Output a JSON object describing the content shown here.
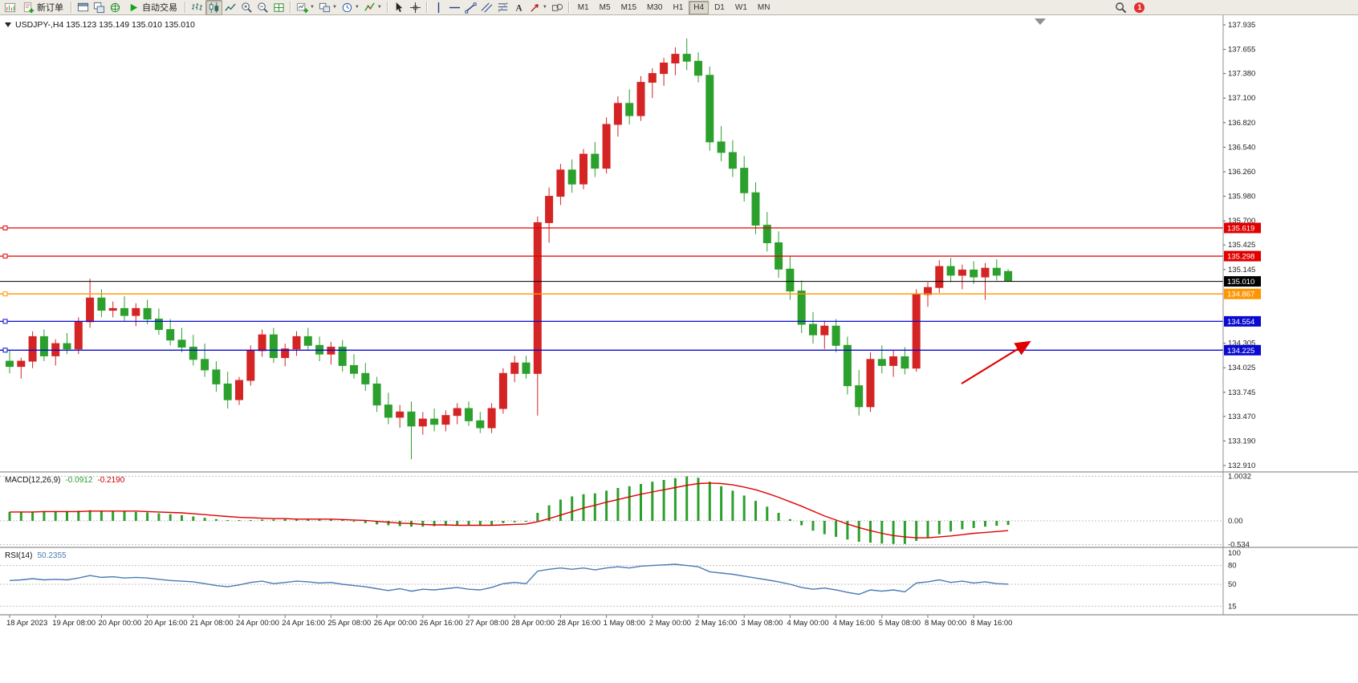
{
  "toolbar": {
    "new_order": "新订单",
    "auto_trading": "自动交易",
    "timeframes": [
      "M1",
      "M5",
      "M15",
      "M30",
      "H1",
      "H4",
      "D1",
      "W1",
      "MN"
    ],
    "active_timeframe": "H4",
    "notification_badge": "1",
    "items": [
      {
        "name": "chart-window-icon",
        "type": "icon",
        "icon": "chart-doc"
      },
      {
        "name": "new-order-button",
        "type": "button",
        "icon": "new-order",
        "label": "新订单"
      },
      {
        "name": "toolbar-separator",
        "type": "sep"
      },
      {
        "name": "profiles-button",
        "type": "icon",
        "icon": "window"
      },
      {
        "name": "market-watch-button",
        "type": "icon",
        "icon": "window2"
      },
      {
        "name": "navigator-button",
        "type": "icon",
        "icon": "globe"
      },
      {
        "name": "auto-trading-button",
        "type": "button",
        "icon": "play",
        "label": "自动交易"
      },
      {
        "name": "toolbar-separator",
        "type": "sep"
      },
      {
        "name": "bar-chart-button",
        "type": "icon",
        "icon": "bars"
      },
      {
        "name": "candlestick-chart-button",
        "type": "icon",
        "icon": "candles",
        "active": true
      },
      {
        "name": "line-chart-button",
        "type": "icon",
        "icon": "linechart"
      },
      {
        "name": "zoom-in-button",
        "type": "icon",
        "icon": "zoom-in"
      },
      {
        "name": "zoom-out-button",
        "type": "icon",
        "icon": "zoom-out"
      },
      {
        "name": "tile-windows-button",
        "type": "icon",
        "icon": "grid"
      },
      {
        "name": "toolbar-separator",
        "type": "sep"
      },
      {
        "name": "new-chart-button",
        "type": "icon",
        "icon": "chart-plus",
        "drop": true
      },
      {
        "name": "profiles-menu-button",
        "type": "icon",
        "icon": "layout",
        "drop": true
      },
      {
        "name": "periods-button",
        "type": "icon",
        "icon": "clock",
        "drop": true
      },
      {
        "name": "indicators-button",
        "type": "icon",
        "icon": "indicator",
        "drop": true
      },
      {
        "name": "toolbar-separator",
        "type": "sep"
      },
      {
        "name": "cursor-button",
        "type": "icon",
        "icon": "cursor"
      },
      {
        "name": "crosshair-button",
        "type": "icon",
        "icon": "crosshair"
      },
      {
        "name": "toolbar-separator",
        "type": "sep"
      },
      {
        "name": "vertical-line-button",
        "type": "icon",
        "icon": "vline"
      },
      {
        "name": "horizontal-line-button",
        "type": "icon",
        "icon": "hline"
      },
      {
        "name": "trendline-button",
        "type": "icon",
        "icon": "trend"
      },
      {
        "name": "equidistant-channel-button",
        "type": "icon",
        "icon": "channel"
      },
      {
        "name": "fibonacci-button",
        "type": "icon",
        "icon": "fibo"
      },
      {
        "name": "text-label-button",
        "type": "icon",
        "icon": "text"
      },
      {
        "name": "arrow-tools-button",
        "type": "icon",
        "icon": "arrows",
        "drop": true
      },
      {
        "name": "shapes-button",
        "type": "icon",
        "icon": "shapes"
      },
      {
        "name": "toolbar-separator",
        "type": "sep"
      },
      {
        "name": "timeframe-group",
        "type": "timeframes"
      },
      {
        "name": "toolbar-gap",
        "type": "gap"
      },
      {
        "name": "search-icon",
        "type": "icon",
        "icon": "search"
      },
      {
        "name": "notification-badge",
        "type": "badge"
      }
    ]
  },
  "chart": {
    "title": "USDJPY-,H4  135.123 135.149 135.010 135.010",
    "symbol": "USDJPY-",
    "period": "H4",
    "ohlc": {
      "open": "135.123",
      "high": "135.149",
      "low": "135.010",
      "close": "135.010"
    },
    "price_ticks": [
      "137.935",
      "137.655",
      "137.380",
      "137.100",
      "136.820",
      "136.540",
      "136.260",
      "135.980",
      "135.700",
      "135.425",
      "135.145",
      "134.305",
      "134.025",
      "133.745",
      "133.470",
      "133.190",
      "132.910"
    ],
    "time_labels": [
      "18 Apr 2023",
      "19 Apr 08:00",
      "20 Apr 00:00",
      "20 Apr 16:00",
      "21 Apr 08:00",
      "24 Apr 00:00",
      "24 Apr 16:00",
      "25 Apr 08:00",
      "26 Apr 00:00",
      "26 Apr 16:00",
      "27 Apr 08:00",
      "28 Apr 00:00",
      "28 Apr 16:00",
      "1 May 08:00",
      "2 May 00:00",
      "2 May 16:00",
      "3 May 08:00",
      "4 May 00:00",
      "4 May 16:00",
      "5 May 08:00",
      "8 May 00:00",
      "8 May 16:00"
    ],
    "hlines": [
      {
        "name": "resistance-line-1",
        "price": 135.619,
        "label": "135.619",
        "color": "#e00000"
      },
      {
        "name": "resistance-line-2",
        "price": 135.298,
        "label": "135.298",
        "color": "#e00000"
      },
      {
        "name": "bid-price-line",
        "price": 135.01,
        "label": "135.010",
        "color": "#000000"
      },
      {
        "name": "support-line-orange",
        "price": 134.867,
        "label": "134.867",
        "color": "#ff9500"
      },
      {
        "name": "support-line-blue-1",
        "price": 134.554,
        "label": "134.554",
        "color": "#0a0ad0"
      },
      {
        "name": "support-line-blue-2",
        "price": 134.225,
        "label": "134.225",
        "color": "#0a0ad0"
      }
    ],
    "colors": {
      "up": "#d42424",
      "down": "#2ca02c"
    },
    "arrow": {
      "color": "#e00000"
    },
    "chart_data": {
      "type": "candlestick",
      "candles": [
        [
          134.1,
          134.22,
          133.96,
          134.04
        ],
        [
          134.04,
          134.14,
          133.9,
          134.1
        ],
        [
          134.1,
          134.44,
          134.02,
          134.38
        ],
        [
          134.38,
          134.46,
          134.1,
          134.16
        ],
        [
          134.16,
          134.35,
          134.05,
          134.3
        ],
        [
          134.3,
          134.42,
          134.18,
          134.24
        ],
        [
          134.24,
          134.6,
          134.18,
          134.55
        ],
        [
          134.55,
          135.04,
          134.48,
          134.82
        ],
        [
          134.82,
          134.92,
          134.6,
          134.68
        ],
        [
          134.68,
          134.78,
          134.6,
          134.7
        ],
        [
          134.7,
          134.84,
          134.56,
          134.62
        ],
        [
          134.62,
          134.76,
          134.5,
          134.7
        ],
        [
          134.7,
          134.8,
          134.52,
          134.58
        ],
        [
          134.58,
          134.7,
          134.4,
          134.46
        ],
        [
          134.46,
          134.58,
          134.28,
          134.34
        ],
        [
          134.34,
          134.48,
          134.2,
          134.26
        ],
        [
          134.26,
          134.4,
          134.05,
          134.12
        ],
        [
          134.12,
          134.3,
          133.92,
          134.0
        ],
        [
          134.0,
          134.1,
          133.75,
          133.84
        ],
        [
          133.84,
          133.98,
          133.56,
          133.66
        ],
        [
          133.66,
          133.92,
          133.6,
          133.88
        ],
        [
          133.88,
          134.28,
          133.82,
          134.22
        ],
        [
          134.22,
          134.46,
          134.15,
          134.4
        ],
        [
          134.4,
          134.48,
          134.08,
          134.14
        ],
        [
          134.14,
          134.3,
          134.04,
          134.24
        ],
        [
          134.24,
          134.44,
          134.16,
          134.38
        ],
        [
          134.38,
          134.48,
          134.22,
          134.28
        ],
        [
          134.28,
          134.38,
          134.1,
          134.18
        ],
        [
          134.18,
          134.32,
          134.06,
          134.26
        ],
        [
          134.26,
          134.34,
          133.98,
          134.05
        ],
        [
          134.05,
          134.18,
          133.9,
          133.96
        ],
        [
          133.96,
          134.08,
          133.76,
          133.84
        ],
        [
          133.84,
          133.92,
          133.52,
          133.6
        ],
        [
          133.6,
          133.74,
          133.38,
          133.46
        ],
        [
          133.46,
          133.6,
          133.34,
          133.52
        ],
        [
          133.52,
          133.64,
          132.98,
          133.36
        ],
        [
          133.36,
          133.52,
          133.26,
          133.44
        ],
        [
          133.44,
          133.56,
          133.3,
          133.38
        ],
        [
          133.38,
          133.54,
          133.3,
          133.48
        ],
        [
          133.48,
          133.62,
          133.38,
          133.56
        ],
        [
          133.56,
          133.64,
          133.36,
          133.42
        ],
        [
          133.42,
          133.52,
          133.28,
          133.34
        ],
        [
          133.34,
          133.62,
          133.28,
          133.56
        ],
        [
          133.56,
          134.02,
          133.5,
          133.96
        ],
        [
          133.96,
          134.16,
          133.86,
          134.08
        ],
        [
          134.08,
          134.16,
          133.9,
          133.96
        ],
        [
          133.96,
          135.75,
          133.48,
          135.68
        ],
        [
          135.68,
          136.08,
          135.45,
          135.98
        ],
        [
          135.98,
          136.35,
          135.88,
          136.28
        ],
        [
          136.28,
          136.4,
          136.02,
          136.12
        ],
        [
          136.12,
          136.52,
          136.06,
          136.46
        ],
        [
          136.46,
          136.6,
          136.2,
          136.3
        ],
        [
          136.3,
          136.88,
          136.24,
          136.8
        ],
        [
          136.8,
          137.12,
          136.66,
          137.04
        ],
        [
          137.04,
          137.2,
          136.8,
          136.9
        ],
        [
          136.9,
          137.35,
          136.84,
          137.28
        ],
        [
          137.28,
          137.44,
          137.1,
          137.38
        ],
        [
          137.38,
          137.56,
          137.24,
          137.5
        ],
        [
          137.5,
          137.68,
          137.36,
          137.6
        ],
        [
          137.6,
          137.78,
          137.42,
          137.52
        ],
        [
          137.52,
          137.62,
          137.28,
          137.36
        ],
        [
          137.36,
          137.46,
          136.5,
          136.6
        ],
        [
          136.6,
          136.78,
          136.38,
          136.48
        ],
        [
          136.48,
          136.62,
          136.2,
          136.3
        ],
        [
          136.3,
          136.44,
          135.92,
          136.02
        ],
        [
          136.02,
          136.14,
          135.55,
          135.65
        ],
        [
          135.65,
          135.8,
          135.35,
          135.45
        ],
        [
          135.45,
          135.58,
          135.05,
          135.15
        ],
        [
          135.15,
          135.3,
          134.8,
          134.9
        ],
        [
          134.9,
          135.02,
          134.42,
          134.52
        ],
        [
          134.52,
          134.66,
          134.3,
          134.4
        ],
        [
          134.4,
          134.56,
          134.24,
          134.5
        ],
        [
          134.5,
          134.58,
          134.2,
          134.28
        ],
        [
          134.28,
          134.38,
          133.72,
          133.82
        ],
        [
          133.82,
          134.0,
          133.48,
          133.58
        ],
        [
          133.58,
          134.2,
          133.52,
          134.12
        ],
        [
          134.12,
          134.28,
          133.96,
          134.05
        ],
        [
          134.05,
          134.22,
          133.92,
          134.15
        ],
        [
          134.15,
          134.26,
          133.95,
          134.02
        ],
        [
          134.02,
          134.92,
          133.98,
          134.86
        ],
        [
          134.86,
          135.0,
          134.72,
          134.94
        ],
        [
          134.94,
          135.25,
          134.88,
          135.18
        ],
        [
          135.18,
          135.28,
          135.0,
          135.08
        ],
        [
          135.08,
          135.2,
          134.92,
          135.14
        ],
        [
          135.14,
          135.24,
          134.98,
          135.06
        ],
        [
          135.06,
          135.22,
          134.8,
          135.16
        ],
        [
          135.16,
          135.26,
          135.02,
          135.08
        ],
        [
          135.123,
          135.149,
          135.01,
          135.01
        ]
      ]
    }
  },
  "macd": {
    "label": "MACD(12,26,9)",
    "value_main": "-0.0912",
    "value_signal": "-0.2190",
    "scale_labels": [
      "1.0032",
      "0.00",
      "-0.534"
    ],
    "scale_values": [
      1.0032,
      0,
      -0.534
    ],
    "hist_color": "#2ca02c",
    "signal_color": "#e00000",
    "histogram": [
      0.2,
      0.21,
      0.21,
      0.22,
      0.22,
      0.22,
      0.23,
      0.24,
      0.23,
      0.22,
      0.21,
      0.2,
      0.19,
      0.17,
      0.15,
      0.13,
      0.1,
      0.07,
      0.04,
      0.01,
      0.0,
      0.01,
      0.03,
      0.03,
      0.04,
      0.04,
      0.04,
      0.03,
      0.03,
      0.01,
      -0.02,
      -0.05,
      -0.08,
      -0.1,
      -0.12,
      -0.13,
      -0.13,
      -0.12,
      -0.11,
      -0.1,
      -0.1,
      -0.11,
      -0.09,
      -0.05,
      -0.03,
      -0.02,
      0.18,
      0.35,
      0.48,
      0.55,
      0.6,
      0.62,
      0.68,
      0.74,
      0.78,
      0.83,
      0.88,
      0.92,
      0.96,
      1.0,
      0.97,
      0.88,
      0.78,
      0.68,
      0.57,
      0.45,
      0.32,
      0.18,
      0.04,
      -0.1,
      -0.22,
      -0.3,
      -0.36,
      -0.42,
      -0.47,
      -0.49,
      -0.51,
      -0.52,
      -0.52,
      -0.45,
      -0.38,
      -0.3,
      -0.24,
      -0.19,
      -0.16,
      -0.13,
      -0.11,
      -0.0912
    ],
    "signal": [
      0.2,
      0.2,
      0.2,
      0.21,
      0.21,
      0.21,
      0.21,
      0.22,
      0.22,
      0.22,
      0.22,
      0.22,
      0.21,
      0.2,
      0.19,
      0.18,
      0.16,
      0.14,
      0.12,
      0.1,
      0.08,
      0.07,
      0.06,
      0.05,
      0.05,
      0.04,
      0.04,
      0.04,
      0.04,
      0.03,
      0.02,
      0.01,
      -0.01,
      -0.03,
      -0.05,
      -0.06,
      -0.08,
      -0.09,
      -0.09,
      -0.1,
      -0.1,
      -0.1,
      -0.1,
      -0.09,
      -0.08,
      -0.07,
      -0.02,
      0.05,
      0.13,
      0.21,
      0.29,
      0.35,
      0.42,
      0.48,
      0.54,
      0.6,
      0.65,
      0.7,
      0.75,
      0.8,
      0.84,
      0.85,
      0.84,
      0.81,
      0.76,
      0.7,
      0.62,
      0.53,
      0.43,
      0.33,
      0.22,
      0.11,
      0.02,
      -0.07,
      -0.15,
      -0.22,
      -0.28,
      -0.33,
      -0.36,
      -0.38,
      -0.38,
      -0.36,
      -0.34,
      -0.31,
      -0.28,
      -0.26,
      -0.24,
      -0.219
    ]
  },
  "rsi": {
    "label": "RSI(14)",
    "value": "50.2355",
    "color": "#4a7ab5",
    "levels": [
      100,
      80,
      50,
      15
    ],
    "values": [
      56,
      57,
      59,
      57,
      58,
      57,
      60,
      64,
      61,
      62,
      60,
      61,
      60,
      58,
      56,
      55,
      54,
      51,
      48,
      46,
      49,
      53,
      55,
      51,
      53,
      55,
      54,
      52,
      53,
      50,
      48,
      46,
      43,
      40,
      43,
      39,
      42,
      41,
      43,
      45,
      42,
      41,
      45,
      51,
      53,
      51,
      71,
      74,
      76,
      74,
      76,
      73,
      76,
      78,
      76,
      79,
      80,
      81,
      82,
      80,
      78,
      70,
      68,
      66,
      63,
      60,
      57,
      54,
      50,
      45,
      42,
      44,
      41,
      37,
      34,
      41,
      39,
      41,
      38,
      52,
      54,
      57,
      53,
      55,
      52,
      54,
      51,
      50.24
    ]
  }
}
